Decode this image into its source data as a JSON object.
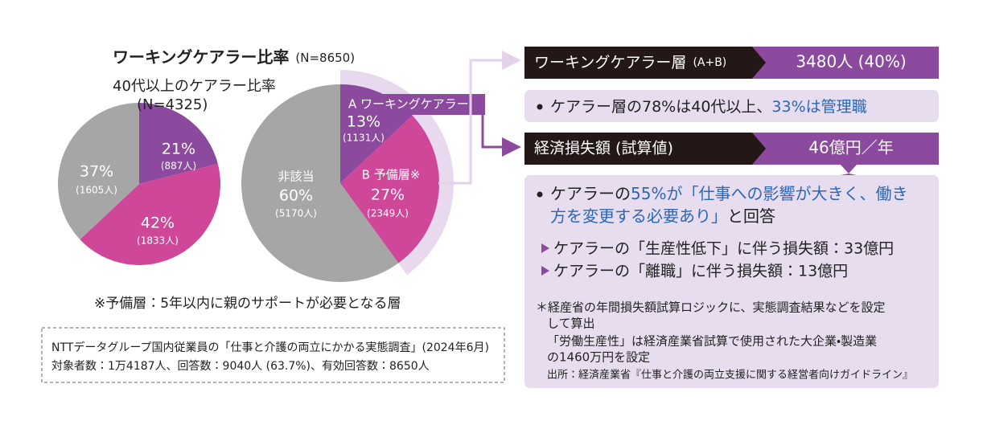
{
  "chart_data": [
    {
      "type": "pie",
      "title": "40代以上のケアラー比率",
      "subtitle": "(N=4325)",
      "values": [
        21,
        42,
        37
      ],
      "value_labels": [
        "21%",
        "42%",
        "37%"
      ],
      "sublabels": [
        "(887人)",
        "(1833人)",
        "(1605人)"
      ],
      "colors": [
        "#8c4a9e",
        "#cf4799",
        "#a6a6a6"
      ]
    },
    {
      "type": "pie",
      "title": "ワーキングケアラー比率",
      "subtitle": "(N=8650)",
      "categories": [
        "A ワーキングケアラー",
        "B 予備層※",
        "非該当"
      ],
      "values": [
        13,
        27,
        60
      ],
      "value_labels": [
        "13%",
        "27%",
        "60%"
      ],
      "sublabels": [
        "(1131人)",
        "(2349人)",
        "(5170人)"
      ],
      "colors": [
        "#8c4a9e",
        "#cf4799",
        "#a6a6a6"
      ]
    }
  ],
  "note": "※予備層：5年以内に親のサポートが必要となる層",
  "source": [
    "NTTデータグループ国内従業員の「仕事と介護の両立にかかる実態調査」(2024年6月)",
    "対象者数：1万4187人、回答数：9040人 (63.7%)、有効回答数：8650人"
  ],
  "panels": [
    {
      "label": "ワーキングケアラー層",
      "label_note": "(A+B)",
      "value": "3480人 (40%)",
      "lines": [
        [
          {
            "text": "ケアラー層の78%は40代以上、"
          },
          {
            "text": "33%は管理職",
            "color": "#2a68b6"
          }
        ]
      ]
    },
    {
      "label": "経済損失額 (試算値)",
      "value": "46億円／年",
      "lines": [
        [
          {
            "text": "ケアラーの"
          },
          {
            "text": "55%が「仕事への影響が大きく、働き",
            "color": "#2a68b6"
          }
        ],
        [
          {
            "text": "方を変更する必要あり」",
            "color": "#2a68b6"
          },
          {
            "text": "と回答"
          }
        ]
      ],
      "items": [
        "ケアラーの「生産性低下」に伴う損失額：33億円",
        "ケアラーの「離職」に伴う損失額：13億円"
      ],
      "footnotes": [
        "＊経産省の年間損失額試算ロジックに、実態調査結果などを設定",
        "して算出",
        "「労働生産性」は経済産業省試算で使用された大企業・製造業",
        "の1460万円を設定"
      ],
      "source": "出所：経済産業省『仕事と介護の両立支援に関する経営者向けガイドライン』"
    }
  ]
}
